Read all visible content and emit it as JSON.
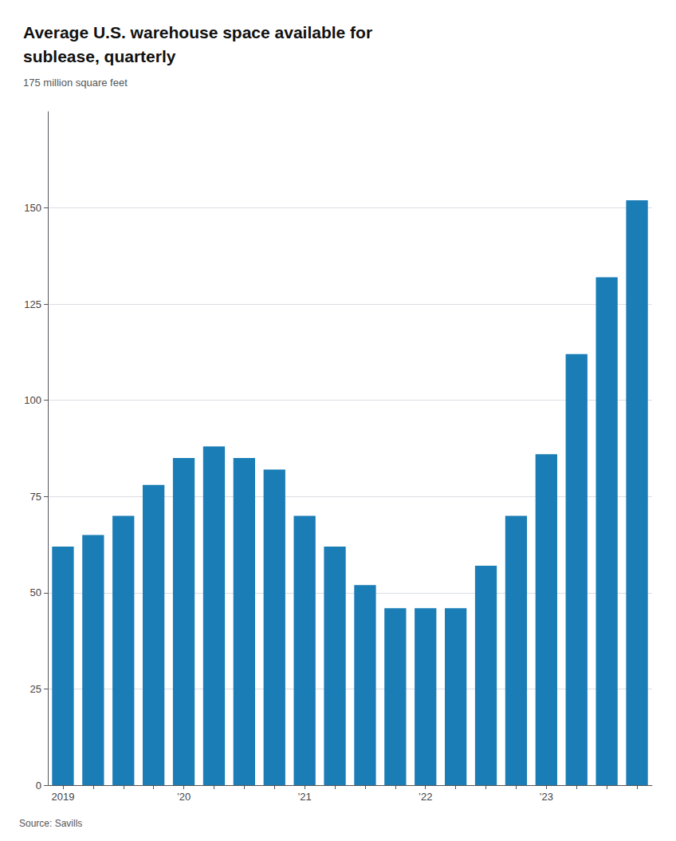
{
  "chart_data": {
    "type": "bar",
    "title": "Average U.S. warehouse space available for\nsublease, quarterly",
    "subtitle": "175 million square feet",
    "annotations": [
      "Source: Savills"
    ],
    "categories": [
      "2019",
      null,
      null,
      null,
      "’20",
      null,
      null,
      null,
      "’21",
      null,
      null,
      null,
      "’22",
      null,
      null,
      null,
      "’23",
      null,
      null,
      null
    ],
    "values": [
      62,
      65,
      70,
      78,
      85,
      88,
      85,
      82,
      70,
      62,
      52,
      46,
      46,
      46,
      57,
      70,
      86,
      112,
      132,
      152
    ],
    "color": "#1a7db5",
    "ylim": [
      0,
      175
    ],
    "yticks": [
      0,
      25,
      50,
      75,
      100,
      125,
      150
    ],
    "grid": true
  }
}
